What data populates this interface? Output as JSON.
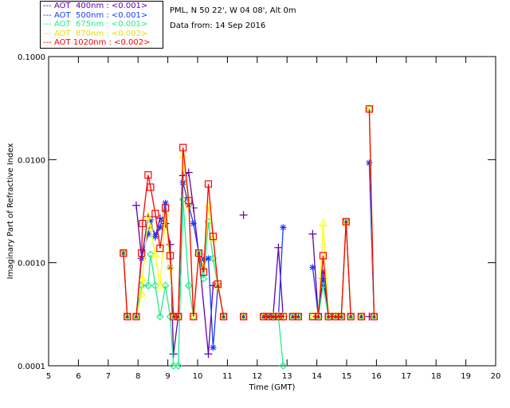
{
  "header": {
    "location": "PML, N 50 22', W 04 08', Alt 0m",
    "date": "Data from: 14 Sep 2016"
  },
  "chart_data": {
    "type": "line",
    "title": "",
    "xlabel": "Time (GMT)",
    "ylabel": "Imaginary Part of Refractive Index",
    "xlim": [
      5,
      20
    ],
    "ylim": [
      0.0001,
      0.1
    ],
    "yscale": "log",
    "x_ticks": [
      "5",
      "6",
      "7",
      "8",
      "9",
      "10",
      "11",
      "12",
      "13",
      "14",
      "15",
      "16",
      "17",
      "18",
      "19",
      "20"
    ],
    "y_ticks": [
      "0.0001",
      "0.0010",
      "0.0100",
      "0.1000"
    ],
    "legend_position": "top-left-outside",
    "series": [
      {
        "name": "AOT  400nm : <0.001>",
        "color": "#6600aa",
        "marker": "plus",
        "points": [
          [
            7.94,
            0.0036
          ],
          [
            8.12,
            0.0011
          ],
          [
            8.34,
            0.0028
          ],
          [
            8.58,
            0.0018
          ],
          [
            8.74,
            0.0027
          ],
          [
            8.92,
            0.0024
          ],
          [
            9.08,
            0.0015
          ],
          [
            9.19,
            0.00013
          ],
          [
            9.35,
            0.0003
          ],
          [
            9.51,
            0.007
          ],
          [
            9.7,
            0.0075
          ],
          [
            9.86,
            0.0034
          ],
          [
            10.04,
            0.0012
          ],
          [
            10.36,
            0.00013
          ],
          [
            10.52,
            0.0006
          ],
          null,
          [
            11.54,
            0.0029
          ],
          null,
          [
            12.53,
            0.0003
          ],
          [
            12.71,
            0.0014
          ],
          [
            12.87,
            0.0003
          ],
          null,
          [
            13.86,
            0.0019
          ],
          [
            14.05,
            0.0003
          ],
          [
            14.21,
            0.0007
          ],
          [
            14.39,
            0.0003
          ],
          null,
          [
            15.76,
            0.0003
          ]
        ]
      },
      {
        "name": "AOT  500nm : <0.001>",
        "color": "#1a3cff",
        "marker": "star",
        "points": [
          [
            7.51,
            0.00124
          ],
          [
            7.64,
            0.0003
          ],
          null,
          [
            7.94,
            0.0003
          ],
          [
            8.12,
            0.0011
          ],
          [
            8.34,
            0.0019
          ],
          [
            8.42,
            0.0026
          ],
          [
            8.58,
            0.0018
          ],
          [
            8.74,
            0.0022
          ],
          [
            8.92,
            0.0038
          ],
          [
            9.08,
            0.0009
          ],
          [
            9.19,
            0.0003
          ],
          [
            9.35,
            0.0003
          ],
          [
            9.51,
            0.006
          ],
          [
            9.7,
            0.0036
          ],
          [
            9.86,
            0.0024
          ],
          [
            10.04,
            0.00124
          ],
          [
            10.2,
            0.00107
          ],
          [
            10.36,
            0.0011
          ],
          [
            10.52,
            0.00015
          ],
          [
            10.68,
            0.0006
          ],
          [
            10.87,
            0.0003
          ],
          null,
          [
            11.54,
            0.0003
          ],
          null,
          [
            12.21,
            0.0003
          ],
          [
            12.37,
            0.0003
          ],
          [
            12.53,
            0.0003
          ],
          [
            12.71,
            0.0003
          ],
          [
            12.87,
            0.0022
          ],
          null,
          [
            13.19,
            0.0003
          ],
          [
            13.38,
            0.0003
          ],
          null,
          [
            13.86,
            0.0009
          ],
          [
            14.05,
            0.0003
          ],
          [
            14.21,
            0.0008
          ],
          [
            14.39,
            0.0003
          ],
          [
            14.63,
            0.0003
          ],
          [
            14.82,
            0.0003
          ],
          [
            14.98,
            0.0025
          ],
          [
            15.14,
            0.0003
          ],
          null,
          [
            15.49,
            0.0003
          ],
          null,
          [
            15.76,
            0.0093
          ],
          [
            15.92,
            0.0003
          ]
        ]
      },
      {
        "name": "AOT  675nm : <0.001>",
        "color": "#22ee88",
        "marker": "diamond",
        "points": [
          [
            7.51,
            0.00124
          ],
          [
            7.64,
            0.0003
          ],
          null,
          [
            7.94,
            0.0003
          ],
          [
            8.12,
            0.0006
          ],
          [
            8.34,
            0.0006
          ],
          [
            8.42,
            0.0012
          ],
          [
            8.58,
            0.0006
          ],
          [
            8.74,
            0.0003
          ],
          [
            8.92,
            0.0006
          ],
          [
            9.08,
            0.0003
          ],
          [
            9.19,
            0.0001
          ],
          [
            9.35,
            0.0001
          ],
          [
            9.51,
            0.0041
          ],
          [
            9.7,
            0.0006
          ],
          [
            9.86,
            0.0003
          ],
          [
            10.04,
            0.00124
          ],
          [
            10.2,
            0.0007
          ],
          [
            10.36,
            0.0025
          ],
          [
            10.52,
            0.0011
          ],
          [
            10.68,
            0.0006
          ],
          [
            10.87,
            0.0003
          ],
          null,
          [
            11.54,
            0.0003
          ],
          null,
          [
            12.21,
            0.0003
          ],
          [
            12.37,
            0.0003
          ],
          [
            12.53,
            0.0003
          ],
          [
            12.71,
            0.0003
          ],
          [
            12.87,
            0.0001
          ],
          null,
          [
            13.19,
            0.0003
          ],
          [
            13.38,
            0.0003
          ],
          null,
          [
            13.86,
            0.0003
          ],
          [
            14.05,
            0.0003
          ],
          [
            14.21,
            0.0006
          ],
          [
            14.39,
            0.0003
          ],
          [
            14.63,
            0.0003
          ],
          [
            14.82,
            0.0003
          ],
          [
            14.98,
            0.0025
          ],
          [
            15.14,
            0.0003
          ],
          null,
          [
            15.49,
            0.0003
          ],
          null,
          [
            15.76,
            0.031
          ],
          [
            15.92,
            0.0003
          ]
        ]
      },
      {
        "name": "AOT  870nm : <0.002>",
        "color": "#ffff00",
        "marker": "triangle",
        "points": [
          [
            7.51,
            0.00124
          ],
          [
            7.64,
            0.0003
          ],
          null,
          [
            7.94,
            0.0003
          ],
          [
            8.12,
            0.0005
          ],
          [
            8.15,
            0.0007
          ],
          [
            8.34,
            0.0028
          ],
          [
            8.42,
            0.0022
          ],
          [
            8.58,
            0.0012
          ],
          [
            8.74,
            0.0006
          ],
          [
            8.92,
            0.003
          ],
          [
            9.08,
            0.0009
          ],
          [
            9.19,
            0.0003
          ],
          [
            9.35,
            0.0003
          ],
          [
            9.51,
            0.011
          ],
          [
            9.7,
            0.0036
          ],
          [
            9.86,
            0.0003
          ],
          [
            10.04,
            0.00124
          ],
          [
            10.2,
            0.0009
          ],
          [
            10.36,
            0.0036
          ],
          [
            10.52,
            0.0017
          ],
          [
            10.68,
            0.0006
          ],
          [
            10.87,
            0.0003
          ],
          null,
          [
            11.54,
            0.0003
          ],
          null,
          [
            12.21,
            0.0003
          ],
          [
            12.37,
            0.0003
          ],
          [
            12.53,
            0.0003
          ],
          [
            12.71,
            0.0003
          ],
          [
            12.87,
            0.0003
          ],
          null,
          [
            13.19,
            0.0003
          ],
          [
            13.38,
            0.0003
          ],
          null,
          [
            13.86,
            0.0003
          ],
          [
            14.05,
            0.0003
          ],
          [
            14.21,
            0.0024
          ],
          [
            14.39,
            0.0003
          ],
          [
            14.63,
            0.0003
          ],
          [
            14.82,
            0.0003
          ],
          [
            14.98,
            0.0025
          ],
          [
            15.14,
            0.0003
          ],
          null,
          [
            15.49,
            0.0003
          ],
          null,
          [
            15.76,
            0.031
          ],
          [
            15.92,
            0.0003
          ]
        ]
      },
      {
        "name": "AOT 1020nm : <0.002>",
        "color": "#ff0000",
        "marker": "square",
        "points": [
          [
            7.51,
            0.00124
          ],
          [
            7.64,
            0.0003
          ],
          null,
          [
            7.94,
            0.0003
          ],
          [
            8.12,
            0.00124
          ],
          [
            8.15,
            0.0024
          ],
          [
            8.34,
            0.0071
          ],
          [
            8.42,
            0.0054
          ],
          [
            8.58,
            0.003
          ],
          [
            8.74,
            0.00138
          ],
          [
            8.92,
            0.0034
          ],
          [
            9.08,
            0.00117
          ],
          [
            9.19,
            0.0003
          ],
          [
            9.35,
            0.0003
          ],
          [
            9.51,
            0.0131
          ],
          [
            9.7,
            0.004
          ],
          [
            9.86,
            0.0003
          ],
          [
            10.04,
            0.00124
          ],
          [
            10.2,
            0.00081
          ],
          [
            10.36,
            0.0058
          ],
          [
            10.52,
            0.0018
          ],
          [
            10.68,
            0.00062
          ],
          [
            10.87,
            0.0003
          ],
          null,
          [
            11.54,
            0.0003
          ],
          null,
          [
            12.21,
            0.0003
          ],
          [
            12.37,
            0.0003
          ],
          [
            12.53,
            0.0003
          ],
          [
            12.71,
            0.0003
          ],
          [
            12.87,
            0.0003
          ],
          null,
          [
            13.19,
            0.0003
          ],
          [
            13.38,
            0.0003
          ],
          null,
          [
            13.86,
            0.0003
          ],
          [
            14.05,
            0.0003
          ],
          [
            14.21,
            0.00117
          ],
          [
            14.39,
            0.0003
          ],
          [
            14.63,
            0.0003
          ],
          [
            14.82,
            0.0003
          ],
          [
            14.98,
            0.0025
          ],
          [
            15.14,
            0.0003
          ],
          null,
          [
            15.49,
            0.0003
          ],
          null,
          [
            15.76,
            0.031
          ],
          [
            15.92,
            0.0003
          ]
        ]
      }
    ]
  }
}
